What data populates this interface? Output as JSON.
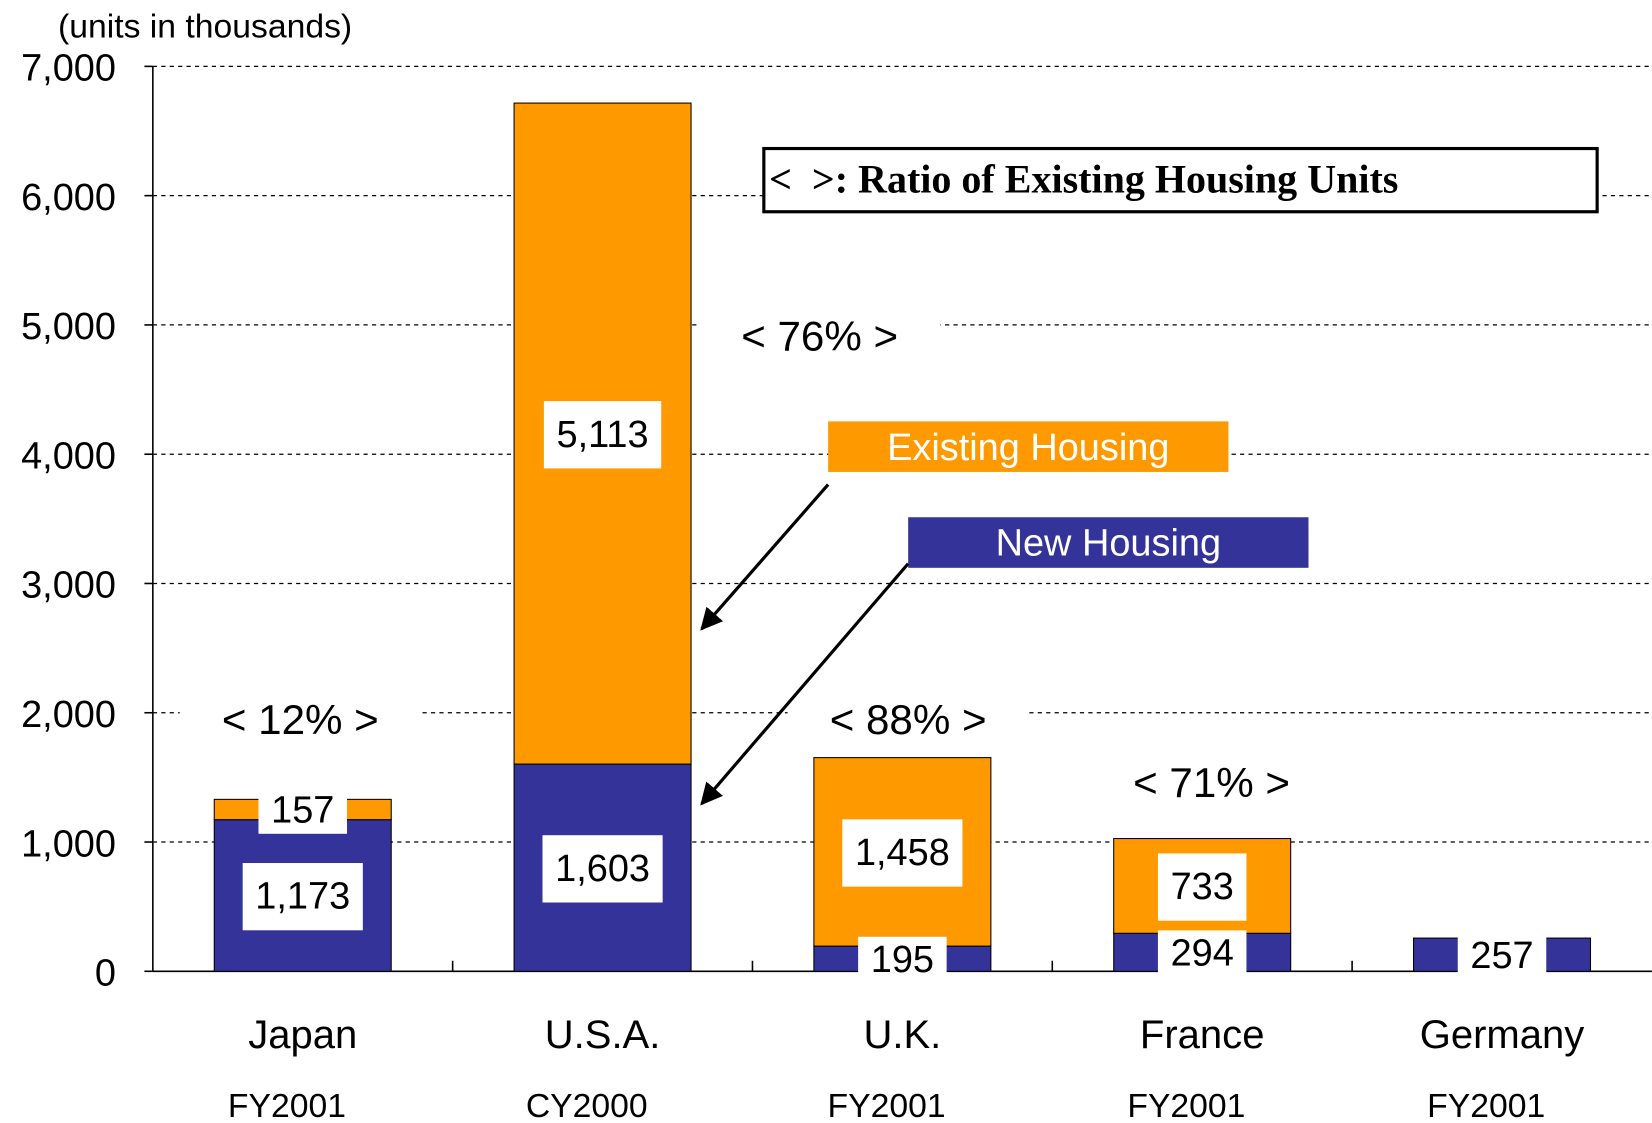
{
  "chart_data": {
    "type": "stacked_bar",
    "axis_label": "(units in thousands)",
    "categories": [
      "Japan",
      "U.S.A.",
      "U.K.",
      "France",
      "Germany"
    ],
    "sub_labels": [
      "FY2001",
      "CY2000",
      "FY2001",
      "FY2001",
      "FY2001"
    ],
    "series": [
      {
        "name": "New Housing",
        "color": "#333399",
        "values": [
          1173,
          1603,
          195,
          294,
          257
        ],
        "value_labels": [
          "1,173",
          "1,603",
          "195",
          "294",
          "257"
        ]
      },
      {
        "name": "Existing Housing",
        "color": "#FF9900",
        "values": [
          157,
          5113,
          1458,
          733,
          null
        ],
        "value_labels": [
          "157",
          "5,113",
          "1,458",
          "733",
          null
        ]
      }
    ],
    "ratio_labels": [
      "< 12% >",
      "< 76% >",
      "< 88% >",
      "< 71% >"
    ],
    "ratio_legend": "<  >: Ratio of Existing Housing Units",
    "ylim": [
      0,
      7000
    ],
    "yticks": [
      0,
      {
        "value": 1000,
        "label": "1,000"
      },
      {
        "value": 2000,
        "label": "2,000"
      },
      {
        "value": 3000,
        "label": "3,000"
      },
      {
        "value": 4000,
        "label": "4,000"
      },
      {
        "value": 5000,
        "label": "5,000"
      },
      {
        "value": 6000,
        "label": "6,000"
      },
      {
        "value": 7000,
        "label": "7,000"
      }
    ],
    "grid": true
  }
}
